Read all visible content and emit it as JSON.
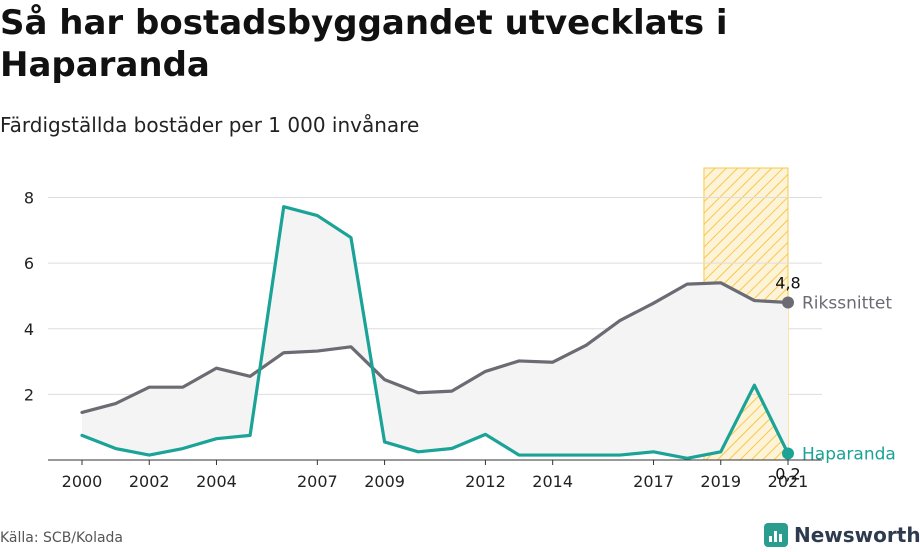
{
  "title": "Så har bostadsbyggandet utvecklats i Haparanda",
  "subtitle": "Färdigställda bostäder per 1 000 invånare",
  "source": "Källa: SCB/Kolada",
  "brand": {
    "name": "Newsworthy",
    "icon": "newsworthy-logo-icon",
    "color": "#2a9d8f"
  },
  "chart_data": {
    "type": "line",
    "x": [
      2000,
      2001,
      2002,
      2003,
      2004,
      2005,
      2006,
      2007,
      2008,
      2009,
      2010,
      2011,
      2012,
      2013,
      2014,
      2015,
      2016,
      2017,
      2018,
      2019,
      2020,
      2021
    ],
    "x_ticks": [
      "2000",
      "2002",
      "2004",
      "2007",
      "2009",
      "2012",
      "2014",
      "2017",
      "2019",
      "2021"
    ],
    "y_ticks": [
      "2",
      "4",
      "6",
      "8"
    ],
    "ylim": [
      0,
      8.9
    ],
    "series": [
      {
        "name": "Rikssnittet",
        "color": "#6b6b73",
        "values": [
          1.45,
          1.72,
          2.22,
          2.22,
          2.8,
          2.55,
          3.27,
          3.32,
          3.45,
          2.45,
          2.05,
          2.1,
          2.7,
          3.02,
          2.98,
          3.5,
          4.25,
          4.78,
          5.36,
          5.4,
          4.86,
          4.8
        ],
        "end_label": "4,8"
      },
      {
        "name": "Haparanda",
        "color": "#1aa396",
        "values": [
          0.75,
          0.35,
          0.15,
          0.35,
          0.65,
          0.75,
          7.72,
          7.45,
          6.78,
          0.55,
          0.25,
          0.35,
          0.78,
          0.15,
          0.15,
          0.15,
          0.15,
          0.25,
          0.05,
          0.25,
          2.28,
          0.2
        ],
        "end_label": "0,2"
      }
    ],
    "highlight": {
      "x_start": 2018.5,
      "x_end": 2021,
      "color": "#f7c948",
      "pattern": "diagonal-hatch"
    },
    "fill_between": {
      "color": "#f4f4f4"
    },
    "grid": true
  }
}
